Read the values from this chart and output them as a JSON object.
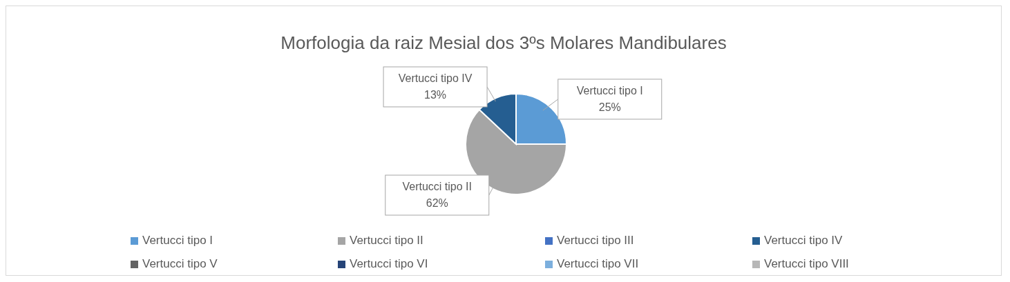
{
  "chart_data": {
    "type": "pie",
    "title": "Morfologia da raiz Mesial dos 3ºs Molares Mandibulares",
    "categories": [
      "Vertucci tipo I",
      "Vertucci tipo II",
      "Vertucci tipo III",
      "Vertucci tipo IV",
      "Vertucci tipo V",
      "Vertucci tipo VI",
      "Vertucci tipo VII",
      "Vertucci tipo VIII"
    ],
    "values": [
      25,
      62,
      0,
      13,
      0,
      0,
      0,
      0
    ],
    "colors": [
      "#5b9bd5",
      "#a5a5a5",
      "#4472c4",
      "#255e91",
      "#636363",
      "#264478",
      "#7cafdd",
      "#b7b7b7"
    ],
    "value_labels": [
      "25%",
      "62%",
      null,
      "13%",
      null,
      null,
      null,
      null
    ],
    "legend": "bottom"
  }
}
